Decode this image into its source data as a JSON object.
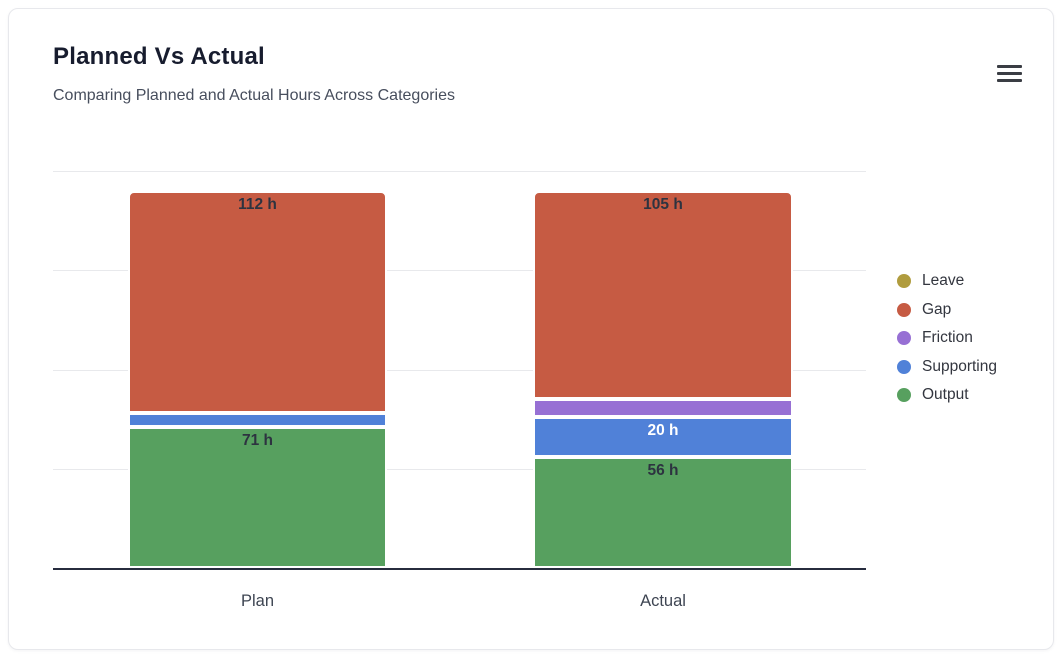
{
  "card": {
    "title": "Planned Vs Actual",
    "subtitle": "Comparing Planned and Actual Hours Across Categories",
    "menu_icon": "hamburger-menu-icon"
  },
  "chart_data": {
    "type": "bar",
    "variant": "stacked-vertical",
    "title": "Planned Vs Actual",
    "subtitle": "Comparing Planned and Actual Hours Across Categories",
    "categories": [
      "Plan",
      "Actual"
    ],
    "unit": "h",
    "series": [
      {
        "name": "Output",
        "color": "#57a05f",
        "values": [
          71,
          56
        ],
        "data_labels": [
          "71 h",
          "56 h"
        ],
        "label_colors": [
          "#2d3340",
          "#2d3340"
        ]
      },
      {
        "name": "Supporting",
        "color": "#5081d8",
        "values": [
          7,
          20
        ],
        "data_labels": [
          "",
          "20 h"
        ],
        "label_colors": [
          "",
          "#ffffff"
        ]
      },
      {
        "name": "Friction",
        "color": "#9770d4",
        "values": [
          0,
          9
        ],
        "data_labels": [
          "",
          ""
        ],
        "label_colors": [
          "",
          ""
        ]
      },
      {
        "name": "Gap",
        "color": "#c65b43",
        "values": [
          112,
          105
        ],
        "data_labels": [
          "112 h",
          "105 h"
        ],
        "label_colors": [
          "#2d3340",
          "#2d3340"
        ]
      },
      {
        "name": "Leave",
        "color": "#b09c3e",
        "values": [
          0,
          0
        ],
        "data_labels": [
          "",
          ""
        ],
        "label_colors": [
          "",
          ""
        ]
      }
    ],
    "legend": {
      "position": "right",
      "items": [
        {
          "label": "Leave",
          "color": "#b09c3e"
        },
        {
          "label": "Gap",
          "color": "#c65b43"
        },
        {
          "label": "Friction",
          "color": "#9770d4"
        },
        {
          "label": "Supporting",
          "color": "#5081d8"
        },
        {
          "label": "Output",
          "color": "#57a05f"
        }
      ]
    },
    "y_axis": {
      "min": 0,
      "max": 200,
      "gridline_step": 50,
      "tick_labels_visible": false
    },
    "grid": "horizontal"
  }
}
